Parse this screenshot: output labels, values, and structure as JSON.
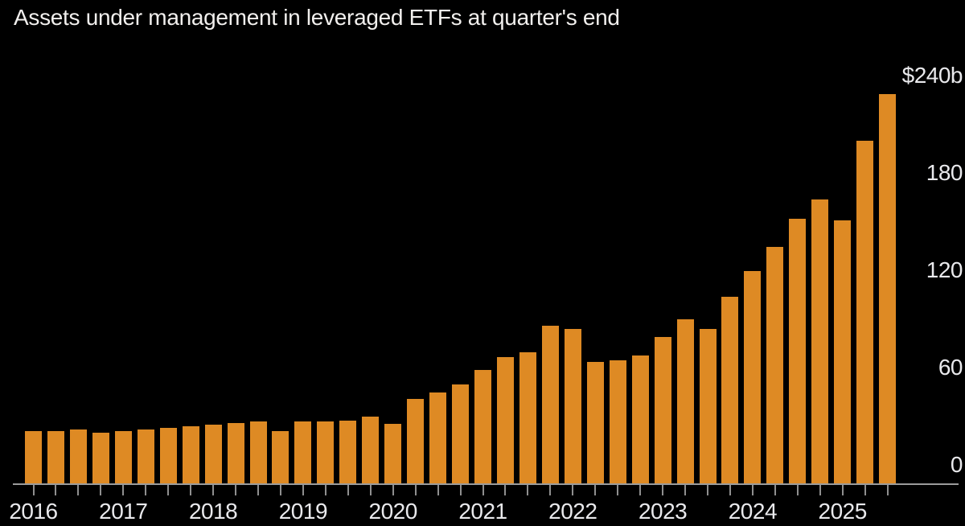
{
  "title": "Assets under management in leveraged ETFs at quarter's end",
  "colors": {
    "background": "#000000",
    "bar": "#de8a24",
    "axis_line": "#9b9b9b",
    "tick": "#8f8f8f",
    "label_text": "#e9e9ec",
    "title_text": "#f1efed"
  },
  "chart_data": {
    "type": "bar",
    "title": "Assets under management in leveraged ETFs at quarter's end",
    "unit": "billions of US dollars",
    "grid": false,
    "legend_position": "none",
    "y_axis_side": "right",
    "ylim": [
      0,
      248
    ],
    "x": [
      "2016 Q1",
      "2016 Q2",
      "2016 Q3",
      "2016 Q4",
      "2017 Q1",
      "2017 Q2",
      "2017 Q3",
      "2017 Q4",
      "2018 Q1",
      "2018 Q2",
      "2018 Q3",
      "2018 Q4",
      "2019 Q1",
      "2019 Q2",
      "2019 Q3",
      "2019 Q4",
      "2020 Q1",
      "2020 Q2",
      "2020 Q3",
      "2020 Q4",
      "2021 Q1",
      "2021 Q2",
      "2021 Q3",
      "2021 Q4",
      "2022 Q1",
      "2022 Q2",
      "2022 Q3",
      "2022 Q4",
      "2023 Q1",
      "2023 Q2",
      "2023 Q3",
      "2023 Q4",
      "2024 Q1",
      "2024 Q2",
      "2024 Q3",
      "2024 Q4",
      "2025 Q1",
      "2025 Q2",
      "2025 Q3"
    ],
    "values": [
      32,
      32,
      33,
      31,
      32,
      33,
      34,
      35,
      36,
      37,
      38,
      32,
      38,
      38,
      38.5,
      41,
      36.5,
      52,
      56,
      61,
      70,
      78,
      81,
      97,
      95,
      75,
      76,
      79,
      90,
      101,
      95,
      115,
      131,
      146,
      163,
      175,
      162,
      211,
      240
    ],
    "x_year_labels": [
      "2016",
      "2017",
      "2018",
      "2019",
      "2020",
      "2021",
      "2022",
      "2023",
      "2024",
      "2025"
    ],
    "y_ticks": [
      {
        "value": 0,
        "label": "0"
      },
      {
        "value": 60,
        "label": "60"
      },
      {
        "value": 120,
        "label": "120"
      },
      {
        "value": 180,
        "label": "180"
      },
      {
        "value": 240,
        "label": "$240b"
      }
    ]
  }
}
